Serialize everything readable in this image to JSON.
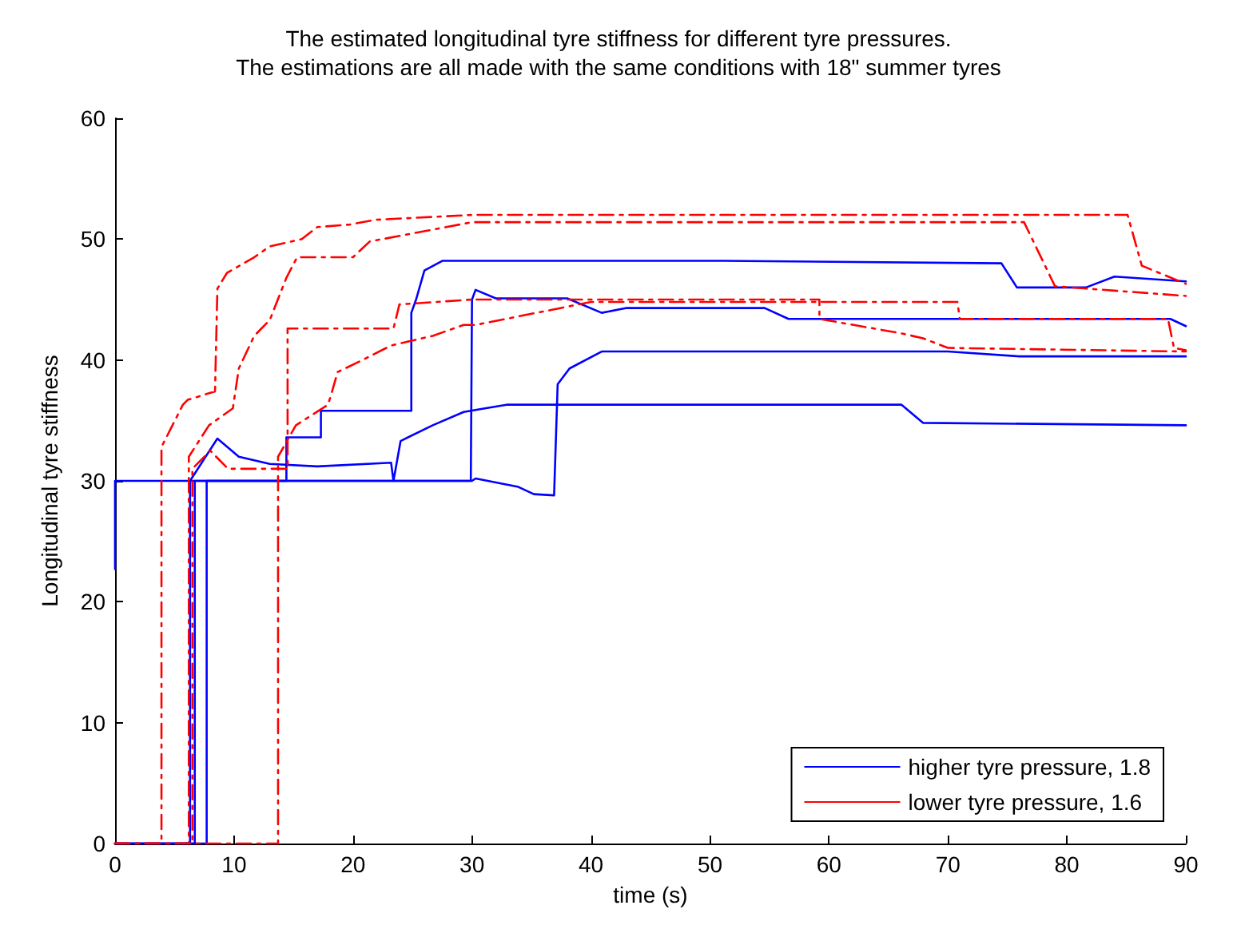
{
  "chart_data": {
    "type": "line",
    "title": "The estimated longitudinal tyre stiffness for different tyre pressures.",
    "subtitle": "The estimations are all made with the same conditions with 18\" summer tyres",
    "xlabel": "time (s)",
    "ylabel": "Longitudinal tyre stiffness",
    "xlim": [
      0,
      90
    ],
    "ylim": [
      0,
      60
    ],
    "xticks": [
      0,
      10,
      20,
      30,
      40,
      50,
      60,
      70,
      80,
      90
    ],
    "yticks": [
      0,
      10,
      20,
      30,
      40,
      50,
      60
    ],
    "grid": false,
    "legend": "bottom right",
    "marker": "none",
    "series": [
      {
        "name": "higher tyre pressure, 1.8",
        "color": "#0000ff",
        "line_style": "solid",
        "x": [
          0,
          6.7,
          6.7,
          14.4,
          14.4,
          17.3,
          17.3,
          24.9,
          24.9,
          25.3,
          26,
          27.5,
          51.2,
          74.5,
          75.8,
          81.6,
          84,
          90
        ],
        "values": [
          0,
          0,
          30,
          30,
          33.6,
          33.6,
          35.8,
          35.8,
          43.9,
          45,
          47.4,
          48.2,
          48.2,
          48,
          46,
          46,
          46.9,
          46.5
        ]
      },
      {
        "color": "#0000ff",
        "line_style": "solid",
        "x": [
          0,
          0,
          29.9,
          30,
          30.3,
          32,
          38,
          40.9,
          43,
          54.6,
          56.6,
          88.7,
          90
        ],
        "values": [
          22.7,
          30,
          30,
          45,
          45.8,
          45.1,
          45.1,
          43.9,
          44.3,
          44.3,
          43.4,
          43.4,
          42.8
        ]
      },
      {
        "color": "#0000ff",
        "line_style": "solid",
        "x": [
          0,
          6.3,
          6.3,
          8.6,
          10.4,
          13,
          17,
          23.2,
          23.4,
          24,
          26.7,
          29.3,
          32.9,
          66.1,
          67.9,
          90
        ],
        "values": [
          0,
          0,
          30,
          33.5,
          32,
          31.4,
          31.2,
          31.5,
          30,
          33.3,
          34.6,
          35.7,
          36.3,
          36.3,
          34.8,
          34.6
        ]
      },
      {
        "color": "#0000ff",
        "line_style": "solid",
        "x": [
          0,
          7.7,
          7.7,
          30,
          30.3,
          33.9,
          35.2,
          36.9,
          37.2,
          38.2,
          40.9,
          70,
          76,
          90
        ],
        "values": [
          0,
          0,
          30,
          30,
          30.2,
          29.5,
          28.9,
          28.8,
          38,
          39.3,
          40.7,
          40.7,
          40.3,
          40.3
        ]
      },
      {
        "name": "lower tyre pressure, 1.6",
        "color": "#ff0000",
        "line_style": "dashdot",
        "x": [
          0,
          3.9,
          3.9,
          5.7,
          6.1,
          8.4,
          8.6,
          9.4,
          11.7,
          13,
          15.7,
          17,
          19.7,
          21.9,
          30,
          85.1,
          86.3,
          90
        ],
        "values": [
          0,
          0,
          32.8,
          36.3,
          36.7,
          37.4,
          45.9,
          47.2,
          48.5,
          49.4,
          50,
          51,
          51.2,
          51.6,
          52,
          52,
          47.8,
          46.3
        ]
      },
      {
        "color": "#ff0000",
        "line_style": "dashdot",
        "x": [
          0,
          6.2,
          6.2,
          7.9,
          9.9,
          10.4,
          11.7,
          13,
          14.4,
          15.3,
          20,
          21.4,
          30,
          76.4,
          79,
          90
        ],
        "values": [
          0,
          0,
          32,
          34.6,
          36,
          39.3,
          42,
          43.3,
          46.8,
          48.5,
          48.5,
          49.8,
          51.4,
          51.4,
          46.1,
          45.3
        ]
      },
      {
        "color": "#ff0000",
        "line_style": "dashdot",
        "x": [
          0,
          6.5,
          6.5,
          8,
          9.5,
          12,
          14.5,
          14.5,
          23.4,
          23.9,
          30,
          59.2,
          59.2,
          66.1,
          67.9,
          70,
          90
        ],
        "values": [
          0,
          0,
          31,
          32.5,
          31,
          31,
          31,
          42.6,
          42.6,
          44.6,
          45,
          45,
          43.4,
          42.2,
          41.8,
          41,
          40.7
        ]
      },
      {
        "color": "#ff0000",
        "line_style": "dashdot",
        "x": [
          0,
          13.7,
          13.7,
          15.2,
          17.9,
          18.3,
          18.7,
          20.6,
          23.2,
          26.7,
          29.3,
          30.3,
          40,
          70.8,
          71,
          88.5,
          89,
          90
        ],
        "values": [
          0,
          0,
          32,
          34.6,
          36.3,
          37.6,
          39,
          39.9,
          41.2,
          42,
          42.9,
          42.9,
          44.8,
          44.8,
          43.4,
          43.4,
          41,
          40.8
        ]
      }
    ]
  }
}
